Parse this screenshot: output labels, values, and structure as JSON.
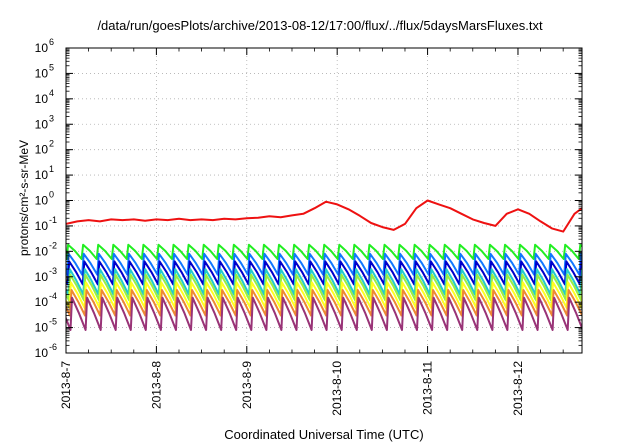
{
  "chart_data": {
    "type": "line",
    "title": "/data/run/goesPlots/archive/2013-08-12/17:00/flux/../flux/5daysMarsFluxes.txt",
    "xlabel": "Coordinated Universal Time (UTC)",
    "ylabel": "protons/cm²-s-sr-MeV",
    "yscale": "log",
    "ylim": [
      1e-06,
      1000000.0
    ],
    "y_ticks": [
      {
        "value": 1e-06,
        "base": "10",
        "exp": "-6"
      },
      {
        "value": 1e-05,
        "base": "10",
        "exp": "-5"
      },
      {
        "value": 0.0001,
        "base": "10",
        "exp": "-4"
      },
      {
        "value": 0.001,
        "base": "10",
        "exp": "-3"
      },
      {
        "value": 0.01,
        "base": "10",
        "exp": "-2"
      },
      {
        "value": 0.1,
        "base": "10",
        "exp": "-1"
      },
      {
        "value": 1,
        "base": "10",
        "exp": "0"
      },
      {
        "value": 10,
        "base": "10",
        "exp": "1"
      },
      {
        "value": 100,
        "base": "10",
        "exp": "2"
      },
      {
        "value": 1000,
        "base": "10",
        "exp": "3"
      },
      {
        "value": 10000,
        "base": "10",
        "exp": "4"
      },
      {
        "value": 100000,
        "base": "10",
        "exp": "5"
      },
      {
        "value": 1000000,
        "base": "10",
        "exp": "6"
      }
    ],
    "xlim": [
      "2013-08-07T00:00",
      "2013-08-12T17:00"
    ],
    "x_ticks": [
      "2013-8-7",
      "2013-8-8",
      "2013-8-9",
      "2013-8-10",
      "2013-8-11",
      "2013-8-12"
    ],
    "x_tick_dates": [
      "2013-08-07T00:00",
      "2013-08-08T00:00",
      "2013-08-09T00:00",
      "2013-08-10T00:00",
      "2013-08-11T00:00",
      "2013-08-12T00:00"
    ],
    "grid": true,
    "legend": "none",
    "series": [
      {
        "color": "#ee1111",
        "values": [
          [
            "2013-08-07T00:00",
            0.12
          ],
          [
            "2013-08-07T03:00",
            0.15
          ],
          [
            "2013-08-07T06:00",
            0.17
          ],
          [
            "2013-08-07T09:00",
            0.15
          ],
          [
            "2013-08-07T12:00",
            0.18
          ],
          [
            "2013-08-07T15:00",
            0.17
          ],
          [
            "2013-08-07T18:00",
            0.18
          ],
          [
            "2013-08-07T21:00",
            0.16
          ],
          [
            "2013-08-08T00:00",
            0.18
          ],
          [
            "2013-08-08T03:00",
            0.17
          ],
          [
            "2013-08-08T06:00",
            0.19
          ],
          [
            "2013-08-08T09:00",
            0.17
          ],
          [
            "2013-08-08T12:00",
            0.18
          ],
          [
            "2013-08-08T15:00",
            0.17
          ],
          [
            "2013-08-08T18:00",
            0.19
          ],
          [
            "2013-08-08T21:00",
            0.18
          ],
          [
            "2013-08-09T00:00",
            0.2
          ],
          [
            "2013-08-09T03:00",
            0.21
          ],
          [
            "2013-08-09T06:00",
            0.24
          ],
          [
            "2013-08-09T09:00",
            0.22
          ],
          [
            "2013-08-09T12:00",
            0.26
          ],
          [
            "2013-08-09T15:00",
            0.3
          ],
          [
            "2013-08-09T18:00",
            0.5
          ],
          [
            "2013-08-09T21:00",
            0.9
          ],
          [
            "2013-08-10T00:00",
            0.7
          ],
          [
            "2013-08-10T03:00",
            0.45
          ],
          [
            "2013-08-10T06:00",
            0.25
          ],
          [
            "2013-08-10T09:00",
            0.13
          ],
          [
            "2013-08-10T12:00",
            0.09
          ],
          [
            "2013-08-10T15:00",
            0.07
          ],
          [
            "2013-08-10T18:00",
            0.12
          ],
          [
            "2013-08-10T21:00",
            0.5
          ],
          [
            "2013-08-11T00:00",
            1.0
          ],
          [
            "2013-08-11T03:00",
            0.7
          ],
          [
            "2013-08-11T06:00",
            0.5
          ],
          [
            "2013-08-11T09:00",
            0.3
          ],
          [
            "2013-08-11T12:00",
            0.18
          ],
          [
            "2013-08-11T15:00",
            0.13
          ],
          [
            "2013-08-11T18:00",
            0.1
          ],
          [
            "2013-08-11T21:00",
            0.3
          ],
          [
            "2013-08-12T00:00",
            0.45
          ],
          [
            "2013-08-12T03:00",
            0.3
          ],
          [
            "2013-08-12T06:00",
            0.15
          ],
          [
            "2013-08-12T09:00",
            0.08
          ],
          [
            "2013-08-12T12:00",
            0.06
          ],
          [
            "2013-08-12T15:00",
            0.3
          ],
          [
            "2013-08-12T17:00",
            0.5
          ]
        ]
      },
      {
        "color": "#22ee22",
        "low": 0.005,
        "high": 0.018,
        "period_hours": 4
      },
      {
        "color": "#1177ff",
        "low": 0.0012,
        "high": 0.008,
        "period_hours": 4
      },
      {
        "color": "#0000cc",
        "low": 0.0005,
        "high": 0.004,
        "period_hours": 4
      },
      {
        "color": "#22cccc",
        "low": 0.0002,
        "high": 0.002,
        "period_hours": 4
      },
      {
        "color": "#99ee44",
        "low": 0.00012,
        "high": 0.0012,
        "period_hours": 4
      },
      {
        "color": "#ffff22",
        "low": 6e-05,
        "high": 0.0006,
        "period_hours": 4
      },
      {
        "color": "#ee8833",
        "low": 3e-05,
        "high": 0.0003,
        "period_hours": 4
      },
      {
        "color": "#993377",
        "low": 8e-06,
        "high": 0.00015,
        "period_hours": 4
      }
    ]
  }
}
